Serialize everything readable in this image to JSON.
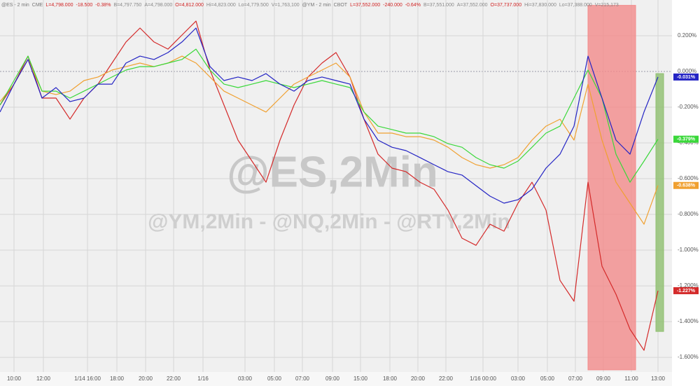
{
  "chart_data": {
    "type": "line",
    "header": [
      {
        "text": "@ES - 2 min",
        "color": "#777777"
      },
      {
        "text": "CME",
        "color": "#777777"
      },
      {
        "text": "L=4,798.000",
        "color": "#d02020"
      },
      {
        "text": "-18.500",
        "color": "#d02020"
      },
      {
        "text": "-0.38%",
        "color": "#d02020"
      },
      {
        "text": "B=4,797.750",
        "color": "#888888"
      },
      {
        "text": "A=4,798.000",
        "color": "#888888"
      },
      {
        "text": "O=4,812.000",
        "color": "#d02020"
      },
      {
        "text": "Hi=4,823.000",
        "color": "#888888"
      },
      {
        "text": "Lo=4,779.500",
        "color": "#888888"
      },
      {
        "text": "V=1,763,100",
        "color": "#888888"
      },
      {
        "text": "@YM - 2 min",
        "color": "#777777"
      },
      {
        "text": "CBOT",
        "color": "#777777"
      },
      {
        "text": "L=37,552.000",
        "color": "#d02020"
      },
      {
        "text": "-240.000",
        "color": "#d02020"
      },
      {
        "text": "-0.64%",
        "color": "#d02020"
      },
      {
        "text": "B=37,551.000",
        "color": "#888888"
      },
      {
        "text": "A=37,552.000",
        "color": "#888888"
      },
      {
        "text": "O=37,737.000",
        "color": "#d02020"
      },
      {
        "text": "Hi=37,830.000",
        "color": "#888888"
      },
      {
        "text": "Lo=37,388.000",
        "color": "#888888"
      },
      {
        "text": "V=215,173",
        "color": "#888888"
      }
    ],
    "watermark": "@ES,2Min",
    "watermark_sub": "@YM,2Min - @NQ,2Min - @RTY,2Min",
    "xlim": [
      0,
      48
    ],
    "ylim": [
      -1.682,
      0.4
    ],
    "grid": true,
    "zero_line": 0,
    "xticks": [
      {
        "value": 1,
        "label": "10:00"
      },
      {
        "value": 3.1,
        "label": "12:00"
      },
      {
        "value": 6.25,
        "label": "1/14 16:00"
      },
      {
        "value": 8.35,
        "label": "18:00"
      },
      {
        "value": 10.4,
        "label": "20:00"
      },
      {
        "value": 12.4,
        "label": "22:00"
      },
      {
        "value": 14.5,
        "label": "1/16"
      },
      {
        "value": 17.5,
        "label": "03:00"
      },
      {
        "value": 19.6,
        "label": "05:00"
      },
      {
        "value": 21.6,
        "label": "07:00"
      },
      {
        "value": 23.75,
        "label": "09:00"
      },
      {
        "value": 25.75,
        "label": "15:00"
      },
      {
        "value": 27.85,
        "label": "18:00"
      },
      {
        "value": 29.85,
        "label": "20:00"
      },
      {
        "value": 31.85,
        "label": "22:00"
      },
      {
        "value": 34.5,
        "label": "1/16 00:00"
      },
      {
        "value": 37,
        "label": "03:00"
      },
      {
        "value": 39.1,
        "label": "05:00"
      },
      {
        "value": 41.1,
        "label": "07:00"
      },
      {
        "value": 43.1,
        "label": "09:00"
      },
      {
        "value": 45.1,
        "label": "11:00"
      },
      {
        "value": 47,
        "label": "13:00"
      }
    ],
    "yticks": [
      {
        "value": 0.2,
        "label": "0.200%"
      },
      {
        "value": 0,
        "label": "0.000%"
      },
      {
        "value": -0.2,
        "label": "-0.200%"
      },
      {
        "value": -0.4,
        "label": "-0.400%"
      },
      {
        "value": -0.6,
        "label": "-0.600%"
      },
      {
        "value": -0.8,
        "label": "-0.800%"
      },
      {
        "value": -1,
        "label": "-1.000%"
      },
      {
        "value": -1.2,
        "label": "-1.200%"
      },
      {
        "value": -1.4,
        "label": "-1.400%"
      },
      {
        "value": -1.6,
        "label": "-1.600%"
      }
    ],
    "spans": [
      {
        "x": [
          42,
          45.4
        ],
        "y": [
          -1.67,
          0.37
        ],
        "color": "#f28b8b"
      },
      {
        "x": [
          46.85,
          47.4
        ],
        "y": [
          -1.455,
          -0.012
        ],
        "color": "#8fbf6f"
      }
    ],
    "series": [
      {
        "name": "@RTY",
        "color": "#d42a2a",
        "values": [
          -0.188,
          -0.071,
          0.086,
          -0.149,
          -0.149,
          -0.267,
          -0.149,
          -0.071,
          0.047,
          0.165,
          0.243,
          0.165,
          0.125,
          0.204,
          0.282,
          0.008,
          -0.188,
          -0.384,
          -0.502,
          -0.62,
          -0.384,
          -0.188,
          -0.031,
          0.047,
          0.106,
          -0.031,
          -0.267,
          -0.463,
          -0.541,
          -0.561,
          -0.62,
          -0.659,
          -0.776,
          -0.933,
          -0.973,
          -0.855,
          -0.894,
          -0.737,
          -0.62,
          -0.776,
          -1.169,
          -1.286,
          -0.62,
          -1.09,
          -1.247,
          -1.443,
          -1.561,
          -1.227
        ],
        "end_label": {
          "value": -1.227,
          "label": "-1.227%"
        }
      },
      {
        "name": "@YM",
        "color": "#f0a030",
        "values": [
          -0.169,
          -0.071,
          0.067,
          -0.11,
          -0.129,
          -0.11,
          -0.051,
          -0.031,
          0.008,
          0.027,
          0.047,
          0.027,
          0.047,
          0.086,
          0.047,
          -0.031,
          -0.11,
          -0.149,
          -0.188,
          -0.227,
          -0.149,
          -0.071,
          -0.031,
          0.008,
          0.047,
          -0.031,
          -0.227,
          -0.345,
          -0.345,
          -0.365,
          -0.365,
          -0.384,
          -0.424,
          -0.482,
          -0.522,
          -0.541,
          -0.522,
          -0.482,
          -0.384,
          -0.306,
          -0.267,
          -0.384,
          -0.071,
          -0.384,
          -0.62,
          -0.737,
          -0.855,
          -0.638
        ],
        "end_label": {
          "value": -0.638,
          "label": "-0.638%"
        }
      },
      {
        "name": "@ES",
        "color": "#3ad83a",
        "values": [
          -0.188,
          -0.051,
          0.086,
          -0.11,
          -0.11,
          -0.149,
          -0.11,
          -0.071,
          -0.031,
          0.008,
          0.027,
          0.027,
          0.047,
          0.067,
          0.125,
          0.008,
          -0.071,
          -0.09,
          -0.071,
          -0.051,
          -0.071,
          -0.09,
          -0.071,
          -0.051,
          -0.071,
          -0.09,
          -0.227,
          -0.306,
          -0.325,
          -0.345,
          -0.345,
          -0.365,
          -0.404,
          -0.424,
          -0.482,
          -0.522,
          -0.541,
          -0.502,
          -0.424,
          -0.345,
          -0.306,
          -0.149,
          0.008,
          -0.149,
          -0.463,
          -0.62,
          -0.502,
          -0.379
        ],
        "end_label": {
          "value": -0.379,
          "label": "-0.379%"
        }
      },
      {
        "name": "@NQ",
        "color": "#2424c4",
        "values": [
          -0.227,
          -0.071,
          0.067,
          -0.149,
          -0.09,
          -0.169,
          -0.149,
          -0.071,
          -0.071,
          0.047,
          0.086,
          0.067,
          0.106,
          0.165,
          0.243,
          0.027,
          -0.051,
          -0.031,
          -0.051,
          -0.012,
          -0.071,
          -0.11,
          -0.051,
          -0.031,
          -0.051,
          -0.071,
          -0.267,
          -0.384,
          -0.424,
          -0.443,
          -0.482,
          -0.522,
          -0.561,
          -0.58,
          -0.639,
          -0.698,
          -0.737,
          -0.718,
          -0.659,
          -0.541,
          -0.463,
          -0.306,
          0.086,
          -0.149,
          -0.384,
          -0.463,
          -0.227,
          -0.031
        ],
        "end_label": {
          "value": -0.031,
          "label": "-0.031%"
        }
      }
    ]
  }
}
